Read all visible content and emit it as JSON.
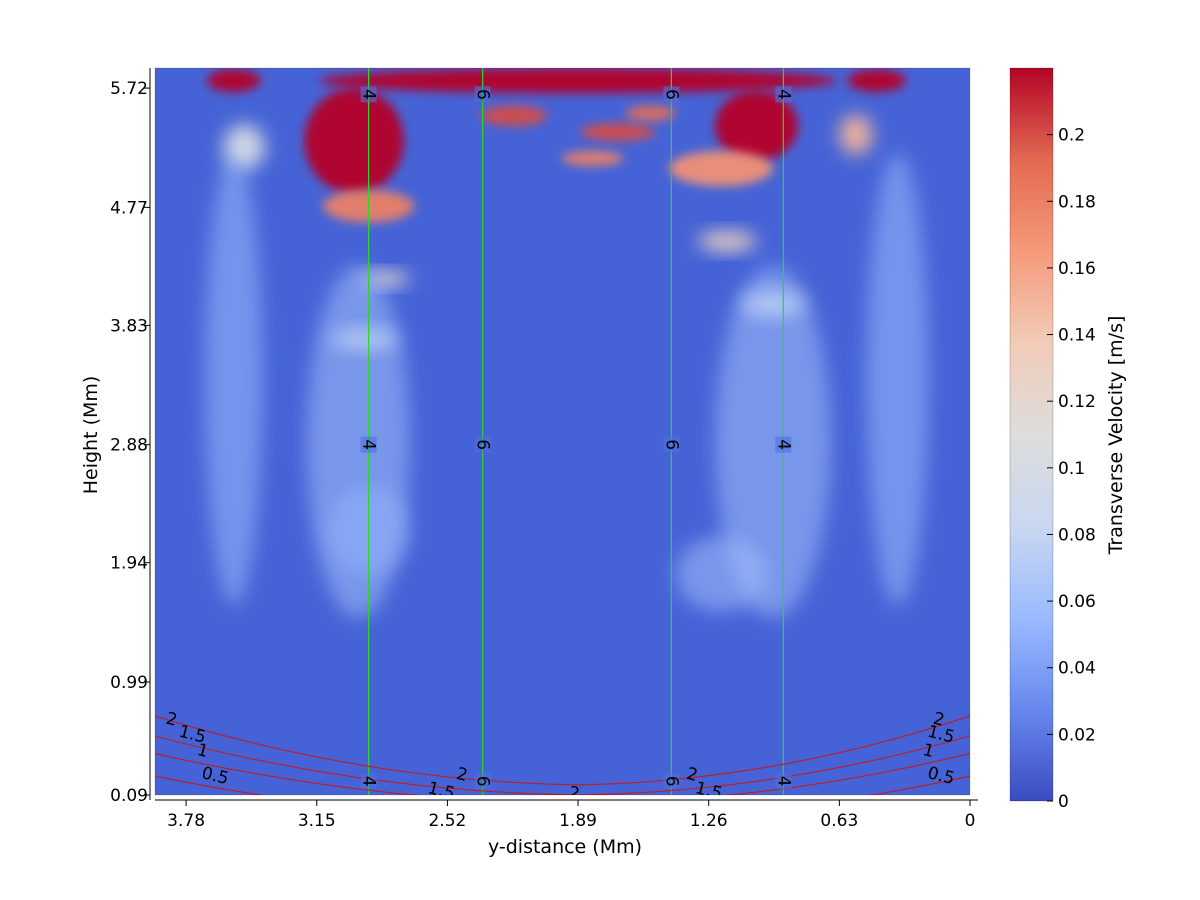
{
  "chart_data": {
    "type": "heatmap",
    "title": "",
    "xlabel": "y-distance (Mm)",
    "ylabel": "Height (Mm)",
    "x_reversed": true,
    "xlim": [
      0,
      3.93
    ],
    "ylim": [
      0.09,
      5.88
    ],
    "x_ticks": [
      3.78,
      3.15,
      2.52,
      1.89,
      1.26,
      0.63,
      0
    ],
    "x_tick_labels": [
      "3.78",
      "3.15",
      "2.52",
      "1.89",
      "1.26",
      "0.63",
      "0"
    ],
    "y_ticks": [
      0.09,
      0.99,
      1.94,
      2.88,
      3.83,
      4.77,
      5.72
    ],
    "y_tick_labels": [
      "0.09",
      "0.99",
      "1.94",
      "2.88",
      "3.83",
      "4.77",
      "5.72"
    ],
    "colorbar": {
      "label": "Transverse Velocity [m/s]",
      "min": 0,
      "max": 0.22,
      "ticks": [
        0,
        0.02,
        0.04,
        0.06,
        0.08,
        0.1,
        0.12,
        0.14,
        0.16,
        0.18,
        0.2
      ],
      "tick_labels": [
        "0",
        "0.02",
        "0.04",
        "0.06",
        "0.08",
        "0.1",
        "0.12",
        "0.14",
        "0.16",
        "0.18",
        "0.2"
      ],
      "colormap": [
        "#3b4cc0",
        "#6788ee",
        "#9abbff",
        "#c9d7f0",
        "#dddddd",
        "#f2cbb7",
        "#f49a7b",
        "#e26952",
        "#b40426"
      ]
    },
    "field_contours": [
      {
        "x": 2.9,
        "label": "4",
        "label_y": [
          5.67,
          2.88,
          0.2
        ]
      },
      {
        "x": 2.35,
        "label": "6",
        "label_y": [
          5.67,
          2.88,
          0.2
        ]
      },
      {
        "x": 1.44,
        "label": "6",
        "label_y": [
          5.67,
          2.88,
          0.2
        ]
      },
      {
        "x": 0.9,
        "label": "4",
        "label_y": [
          5.67,
          2.88,
          0.2
        ]
      }
    ],
    "curved_contours": [
      {
        "level": "2",
        "center_x": 1.89,
        "center_y": 0.17,
        "left_y": 0.72,
        "right_y": 0.72
      },
      {
        "level": "1.5",
        "center_x": 1.89,
        "center_y": 0.09,
        "left_y": 0.56,
        "right_y": 0.56
      },
      {
        "level": "1",
        "center_x": 1.89,
        "center_y": 0.02,
        "left_y": 0.42,
        "right_y": 0.42
      },
      {
        "level": "0.5",
        "center_x": 1.89,
        "center_y": -0.12,
        "left_y": 0.24,
        "right_y": 0.24
      }
    ],
    "curved_contour_labels": [
      {
        "text": "2",
        "x": 3.85,
        "y": 0.69
      },
      {
        "text": "1.5",
        "x": 3.75,
        "y": 0.57
      },
      {
        "text": "1",
        "x": 3.7,
        "y": 0.44
      },
      {
        "text": "0.5",
        "x": 3.64,
        "y": 0.24
      },
      {
        "text": "2",
        "x": 2.45,
        "y": 0.25
      },
      {
        "text": "1.5",
        "x": 2.55,
        "y": 0.12
      },
      {
        "text": "2",
        "x": 1.91,
        "y": 0.1
      },
      {
        "text": "2",
        "x": 1.34,
        "y": 0.25
      },
      {
        "text": "1.5",
        "x": 1.26,
        "y": 0.12
      },
      {
        "text": "2",
        "x": 0.15,
        "y": 0.69
      },
      {
        "text": "1.5",
        "x": 0.14,
        "y": 0.57
      },
      {
        "text": "1",
        "x": 0.2,
        "y": 0.44
      },
      {
        "text": "0.5",
        "x": 0.14,
        "y": 0.24
      }
    ],
    "hotspots": [
      {
        "x": 3.55,
        "y": 5.78,
        "rx": 0.13,
        "ry": 0.09,
        "v": 0.22
      },
      {
        "x": 1.89,
        "y": 5.78,
        "rx": 1.25,
        "ry": 0.1,
        "v": 0.22
      },
      {
        "x": 0.45,
        "y": 5.78,
        "rx": 0.14,
        "ry": 0.09,
        "v": 0.22
      },
      {
        "x": 2.97,
        "y": 5.3,
        "rx": 0.24,
        "ry": 0.42,
        "v": 0.22
      },
      {
        "x": 2.9,
        "y": 4.78,
        "rx": 0.22,
        "ry": 0.13,
        "v": 0.18
      },
      {
        "x": 1.03,
        "y": 5.42,
        "rx": 0.2,
        "ry": 0.28,
        "v": 0.22
      },
      {
        "x": 1.2,
        "y": 5.08,
        "rx": 0.25,
        "ry": 0.14,
        "v": 0.17
      },
      {
        "x": 2.2,
        "y": 5.5,
        "rx": 0.16,
        "ry": 0.08,
        "v": 0.2
      },
      {
        "x": 1.7,
        "y": 5.37,
        "rx": 0.18,
        "ry": 0.07,
        "v": 0.2
      },
      {
        "x": 1.54,
        "y": 5.52,
        "rx": 0.12,
        "ry": 0.06,
        "v": 0.19
      },
      {
        "x": 1.82,
        "y": 5.16,
        "rx": 0.15,
        "ry": 0.06,
        "v": 0.18
      },
      {
        "x": 0.55,
        "y": 5.35,
        "rx": 0.08,
        "ry": 0.16,
        "v": 0.15
      },
      {
        "x": 3.5,
        "y": 5.25,
        "rx": 0.1,
        "ry": 0.18,
        "v": 0.1
      },
      {
        "x": 2.82,
        "y": 4.2,
        "rx": 0.12,
        "ry": 0.06,
        "v": 0.12
      },
      {
        "x": 2.92,
        "y": 3.72,
        "rx": 0.16,
        "ry": 0.08,
        "v": 0.09
      },
      {
        "x": 1.17,
        "y": 4.5,
        "rx": 0.14,
        "ry": 0.08,
        "v": 0.13
      },
      {
        "x": 0.95,
        "y": 4.0,
        "rx": 0.15,
        "ry": 0.1,
        "v": 0.09
      },
      {
        "x": 2.95,
        "y": 2.9,
        "rx": 0.25,
        "ry": 1.4,
        "v": 0.06
      },
      {
        "x": 0.95,
        "y": 2.9,
        "rx": 0.28,
        "ry": 1.4,
        "v": 0.06
      },
      {
        "x": 3.55,
        "y": 3.4,
        "rx": 0.14,
        "ry": 1.8,
        "v": 0.055
      },
      {
        "x": 0.35,
        "y": 3.4,
        "rx": 0.15,
        "ry": 1.8,
        "v": 0.055
      },
      {
        "x": 1.2,
        "y": 1.85,
        "rx": 0.22,
        "ry": 0.3,
        "v": 0.06
      },
      {
        "x": 2.9,
        "y": 2.2,
        "rx": 0.2,
        "ry": 0.35,
        "v": 0.05
      }
    ]
  }
}
